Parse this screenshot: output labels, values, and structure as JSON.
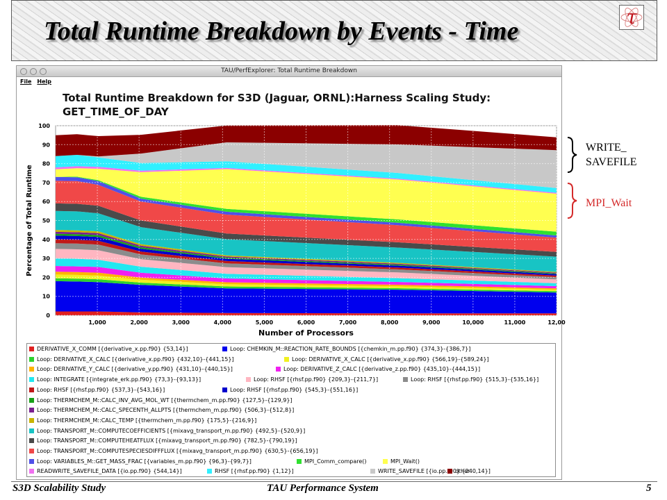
{
  "slide": {
    "title": "Total Runtime Breakdown by Events - Time",
    "logo_glyph": "τ",
    "footer_left": "S3D Scalability Study",
    "footer_center": "TAU Performance System",
    "page_number": "5"
  },
  "window": {
    "title": "TAU/PerfExplorer: Total Runtime Breakdown",
    "menu": [
      "File",
      "Help"
    ]
  },
  "annotations": [
    {
      "text": "WRITE_\nSAVEFILE",
      "color": "#000000"
    },
    {
      "text": "MPI_Wait",
      "color": "#d42a2a"
    }
  ],
  "chart_data": {
    "type": "area",
    "stacked": true,
    "title": "Total Runtime Breakdown for S3D (Jaguar, ORNL):Harness Scaling Study: GET_TIME_OF_DAY",
    "xlabel": "Number of Processors",
    "ylabel": "Percentage of Total Runtime",
    "xlim": [
      0,
      12000
    ],
    "ylim": [
      0,
      100
    ],
    "x_ticks": [
      "1,000",
      "2,000",
      "3,000",
      "4,000",
      "5,000",
      "6,000",
      "7,000",
      "8,000",
      "9,000",
      "10,000",
      "11,000",
      "12,00"
    ],
    "x_tick_values": [
      1000,
      2000,
      3000,
      4000,
      5000,
      6000,
      7000,
      8000,
      9000,
      10000,
      11000,
      12000
    ],
    "y_ticks": [
      "0",
      "10",
      "20",
      "30",
      "40",
      "50",
      "60",
      "70",
      "80",
      "90",
      "100"
    ],
    "grid": true,
    "x": [
      1,
      512,
      1024,
      2048,
      4096,
      8192,
      12000
    ],
    "series": [
      {
        "name": "DERIVATIVE_X_COMM [{derivative_x.pp.f90} {53,14}]",
        "color": "#e02020",
        "values": [
          2,
          2,
          2,
          1.5,
          1.2,
          1,
          1
        ]
      },
      {
        "name": "Loop: CHEMKIN_M::REACTION_RATE_BOUNDS [{chemkin_m.pp.f90} {374,3}-{386,7}]",
        "color": "#0000ee",
        "values": [
          16,
          15.8,
          15.5,
          14.5,
          13,
          12.5,
          11
        ]
      },
      {
        "name": "Loop: DERIVATIVE_X_CALC [{derivative_x.pp.f90} {432,10}-{441,15}]",
        "color": "#2ed12e",
        "values": [
          1.5,
          1.5,
          1.5,
          1.2,
          1,
          0.8,
          0.7
        ]
      },
      {
        "name": "Loop: DERIVATIVE_X_CALC [{derivative_x.pp.f90} {566,19}-{589,24}]",
        "color": "#f0f020",
        "values": [
          2,
          2,
          2,
          1.5,
          1.2,
          1,
          0.8
        ]
      },
      {
        "name": "Loop: DERIVATIVE_Y_CALC [{derivative_y.pp.f90} {431,10}-{440,15}]",
        "color": "#ffb400",
        "values": [
          1.5,
          1.5,
          1.5,
          1.2,
          1,
          0.8,
          0.7
        ]
      },
      {
        "name": "Loop: DERIVATIVE_Z_CALC [{derivative_z.pp.f90} {435,10}-{444,15}]",
        "color": "#f020f0",
        "values": [
          3,
          3,
          3,
          2.5,
          2,
          1.5,
          1.2
        ]
      },
      {
        "name": "Loop: INTEGRATE [{integrate_erk.pp.f90} {73,3}-{93,13}]",
        "color": "#22e8f0",
        "values": [
          4,
          4,
          3.8,
          3.2,
          2.5,
          2,
          1.5
        ]
      },
      {
        "name": "Loop: RHSF [{rhsf.pp.f90} {209,3}-{211,7}]",
        "color": "#ffb6c1",
        "values": [
          5,
          5,
          5,
          4,
          3.5,
          3,
          2
        ]
      },
      {
        "name": "Loop: RHSF [{rhsf.pp.f90} {515,3}-{535,16}]",
        "color": "#8c8c8c",
        "values": [
          3,
          3,
          3,
          2.5,
          2,
          1.6,
          1.2
        ]
      },
      {
        "name": "Loop: RHSF [{rhsf.pp.f90} {537,3}-{543,16}]",
        "color": "#c01818",
        "values": [
          2,
          2,
          2,
          1.5,
          1.2,
          1,
          0.8
        ]
      },
      {
        "name": "Loop: RHSF [{rhsf.pp.f90} {545,3}-{551,16}]",
        "color": "#0000cc",
        "values": [
          2,
          2,
          2,
          1.5,
          1.2,
          1,
          0.8
        ]
      },
      {
        "name": "Loop: THERMCHEM_M::CALC_INV_AVG_MOL_WT [{thermchem_m.pp.f90} {127,5}-{129,9}]",
        "color": "#18a018",
        "values": [
          1,
          1,
          1,
          0.8,
          0.6,
          0.5,
          0.4
        ]
      },
      {
        "name": "Loop: THERMCHEM_M::CALC_SPECENTH_ALLPTS [{thermchem_m.pp.f90} {506,3}-{512,8}]",
        "color": "#7a2090",
        "values": [
          1,
          1,
          1,
          0.8,
          0.6,
          0.5,
          0.4
        ]
      },
      {
        "name": "Loop: THERMCHEM_M::CALC_TEMP [{thermchem_m.pp.f90} {175,5}-{216,9}]",
        "color": "#c8b400",
        "values": [
          1,
          1,
          1,
          0.8,
          0.6,
          0.5,
          0.4
        ]
      },
      {
        "name": "Loop: TRANSPORT_M::COMPUTECOEFFICIENTS [{mixavg_transport_m.pp.f90} {492,5}-{520,9}]",
        "color": "#18c4c4",
        "values": [
          10,
          10,
          9.5,
          9,
          8.5,
          8,
          8
        ]
      },
      {
        "name": "Loop: TRANSPORT_M::COMPUTEHEATFLUX [{mixavg_transport_m.pp.f90} {782,5}-{790,19}]",
        "color": "#4a4a4a",
        "values": [
          4,
          4,
          4,
          3.5,
          3,
          2.8,
          2.5
        ]
      },
      {
        "name": "Loop: TRANSPORT_M::COMPUTESPECIESDIFFFLUX [{mixavg_transport_m.pp.f90} {630,5}-{656,19}]",
        "color": "#f04848",
        "values": [
          12,
          12,
          11,
          10,
          10,
          9,
          7.5
        ]
      },
      {
        "name": "Loop: VARIABLES_M::GET_MASS_FRAC [{variables_m.pp.f90} {96,3}-{99,7}]",
        "color": "#5050e8",
        "values": [
          2,
          2,
          2,
          1.5,
          1.5,
          1.3,
          1.2
        ]
      },
      {
        "name": "MPI_Comm_compare()",
        "color": "#30e030",
        "values": [
          0,
          0.3,
          0.5,
          1,
          1.5,
          1.8,
          2
        ]
      },
      {
        "name": "MPI_Wait()",
        "color": "#ffff50",
        "values": [
          4,
          4.5,
          6,
          13,
          21,
          21,
          20
        ]
      },
      {
        "name": "READWRITE_SAVEFILE_DATA [{io.pp.f90} {544,14}]",
        "color": "#f070f0",
        "values": [
          1,
          1,
          1,
          0.8,
          0.6,
          0.5,
          0.5
        ]
      },
      {
        "name": "RHSF [{rhsf.pp.f90} {1,12}]",
        "color": "#30f0ff",
        "values": [
          6,
          6,
          5,
          4,
          3.5,
          3,
          2.5
        ]
      },
      {
        "name": "WRITE_SAVEFILE [{io.pp.f90} {240,14}]",
        "color": "#c8c8c8",
        "values": [
          0,
          0,
          0.5,
          5,
          10,
          15,
          20
        ]
      },
      {
        "name": "other",
        "color": "#8b0000",
        "values": [
          11,
          10.9,
          10.7,
          9.9,
          8.9,
          10.2,
          6.8
        ]
      }
    ]
  }
}
